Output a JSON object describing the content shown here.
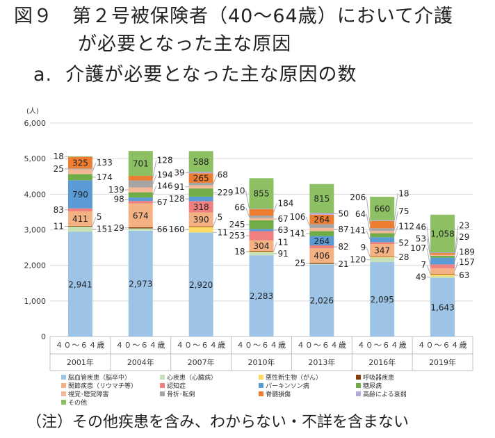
{
  "title": {
    "line1": "図９　第２号被保険者（40～64歳）において介護",
    "line2": "が必要となった主な原因",
    "line3": "a.  介護が必要となった主な原因の数"
  },
  "note": "（注）その他疾患を含み、わからない・不詳を含まない",
  "chart_data": {
    "type": "bar",
    "stacked": true,
    "ylabel": "(人)",
    "ylim": [
      0,
      6000
    ],
    "yticks": [
      "0",
      "1,000",
      "2,000",
      "3,000",
      "4,000",
      "5,000",
      "6,000"
    ],
    "grid": true,
    "legend_placement": "bottom",
    "age_label": "４０～６４歳",
    "categories": [
      "2001年",
      "2004年",
      "2007年",
      "2010年",
      "2013年",
      "2016年",
      "2019年"
    ],
    "series": [
      {
        "name": "脳血管疾患（脳卒中）",
        "color": "#9dc3e6",
        "values": [
          2941,
          2973,
          2920,
          2283,
          2026,
          2095,
          1643
        ]
      },
      {
        "name": "心疾患（心臓病）",
        "color": "#c5e0b4",
        "values": [
          151,
          66,
          11,
          91,
          21,
          120,
          49
        ]
      },
      {
        "name": "悪性新生物（がん）",
        "color": "#ffd966",
        "values": [
          11,
          null,
          160,
          18,
          null,
          28,
          63
        ]
      },
      {
        "name": "呼吸器疾患",
        "color": "#843c0c",
        "values": [
          5,
          29,
          5,
          11,
          25,
          9,
          7
        ]
      },
      {
        "name": "関節疾患（リウマチ等）",
        "color": "#f4b183",
        "values": [
          411,
          674,
          390,
          304,
          406,
          347,
          157
        ]
      },
      {
        "name": "認知症",
        "color": "#f08080",
        "values": [
          83,
          67,
          318,
          253,
          82,
          52,
          107
        ]
      },
      {
        "name": "パーキンソン病",
        "color": "#5b9bd5",
        "values": [
          790,
          98,
          128,
          63,
          264,
          141,
          189
        ]
      },
      {
        "name": "糖尿病",
        "color": "#70ad47",
        "values": [
          174,
          146,
          229,
          245,
          141,
          112,
          53
        ]
      },
      {
        "name": "視覚･聴覚障害",
        "color": "#f4b896",
        "values": [
          133,
          139,
          91,
          67,
          87,
          64,
          29
        ]
      },
      {
        "name": "骨折･転倒",
        "color": "#a5a5a5",
        "values": [
          25,
          194,
          68,
          66,
          106,
          75,
          null
        ]
      },
      {
        "name": "脊髄損傷",
        "color": "#ed7d31",
        "values": [
          325,
          128,
          265,
          184,
          264,
          206,
          46
        ]
      },
      {
        "name": "高齢による衰弱",
        "color": "#b4a7d6",
        "values": [
          null,
          null,
          39,
          10,
          50,
          18,
          23
        ]
      },
      {
        "name": "その他",
        "color": "#8cc063",
        "values": [
          18,
          701,
          588,
          855,
          815,
          660,
          1058
        ]
      }
    ]
  }
}
